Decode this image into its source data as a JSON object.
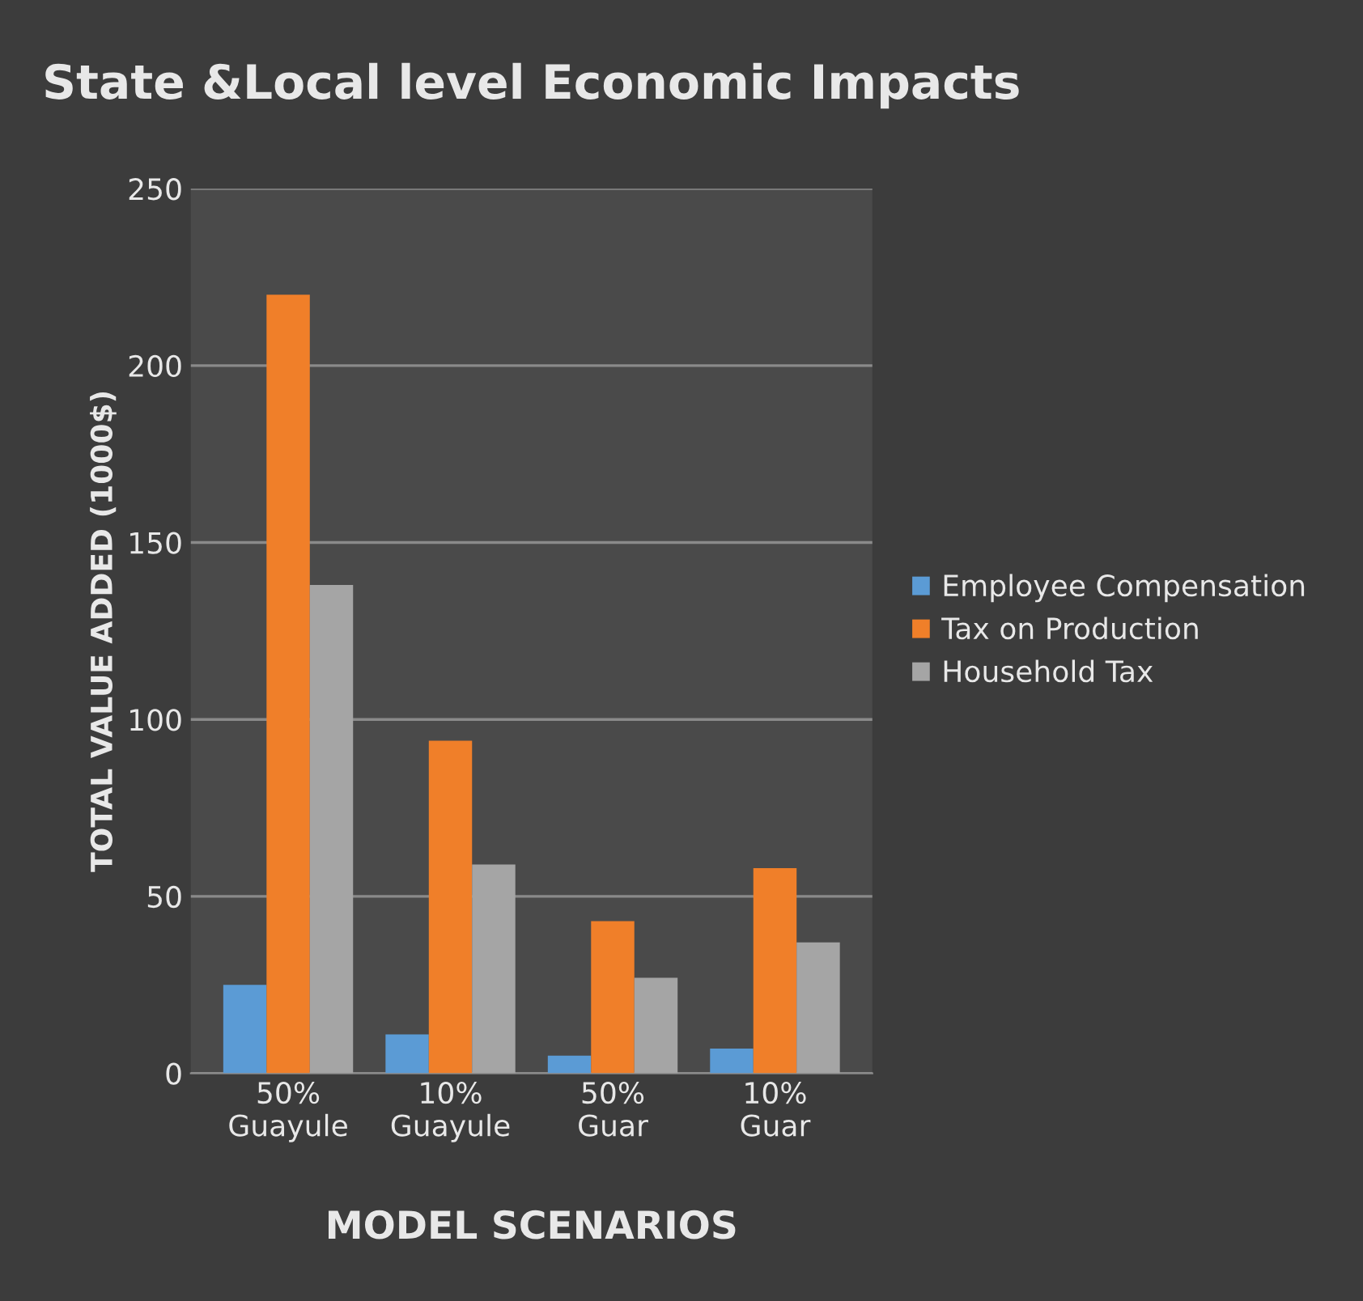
{
  "chart_data": {
    "type": "bar",
    "title": "State &Local level Economic Impacts",
    "xlabel": "MODEL SCENARIOS",
    "ylabel": "TOTAL VALUE ADDED (1000$)",
    "categories": [
      "50%\nGuayule",
      "10%\nGuayule",
      "50%\nGuar",
      "10%\nGuar"
    ],
    "series": [
      {
        "name": "Employee Compensation",
        "color": "#5b9bd5",
        "values": [
          25,
          11,
          5,
          7
        ]
      },
      {
        "name": "Tax on Production",
        "color": "#f07f29",
        "values": [
          220,
          94,
          43,
          58
        ]
      },
      {
        "name": "Household Tax",
        "color": "#a5a5a5",
        "values": [
          138,
          59,
          27,
          37
        ]
      }
    ],
    "ylim": [
      0,
      250
    ],
    "yticks": [
      0,
      50,
      100,
      150,
      200,
      250
    ],
    "grid": "y",
    "legend": "right"
  }
}
